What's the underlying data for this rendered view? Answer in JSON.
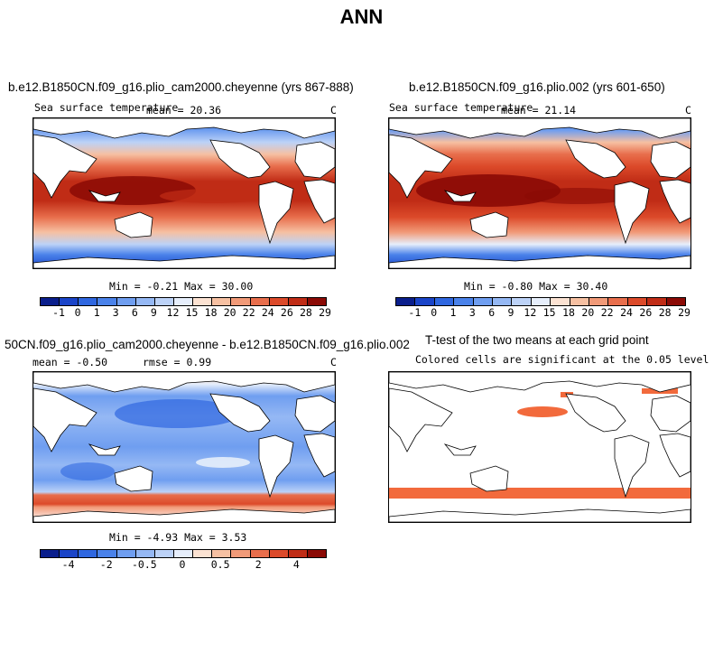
{
  "main_title": "ANN",
  "colors": {
    "palette": [
      "#0a1e8c",
      "#1a44c8",
      "#2f67e0",
      "#4a82ea",
      "#6f9ef0",
      "#95b8f4",
      "#bcd2f7",
      "#e6eefb",
      "#fbe2d2",
      "#f6c0a2",
      "#f19a78",
      "#e86e4c",
      "#dc4a2a",
      "#c02c16",
      "#8b0a05"
    ],
    "significance": "#f26a3c"
  },
  "chart_data": [
    {
      "type": "heatmap",
      "panel": "top-left",
      "title": "b.e12.B1850CN.f09_g16.plio_cam2000.cheyenne (yrs 867-888)",
      "variable": "Sea surface temperature",
      "mean_label": "mean = 20.36",
      "units": "C",
      "mean": 20.36,
      "min": -0.21,
      "max": 30.0,
      "minmax_label": "Min =  -0.21 Max =  30.00",
      "colorbar_levels": [
        "-1",
        "0",
        "1",
        "3",
        "6",
        "9",
        "12",
        "15",
        "18",
        "20",
        "22",
        "24",
        "26",
        "28",
        "29"
      ]
    },
    {
      "type": "heatmap",
      "panel": "top-right",
      "title": "b.e12.B1850CN.f09_g16.plio.002 (yrs 601-650)",
      "variable": "Sea surface temperature",
      "mean_label": "mean = 21.14",
      "units": "C",
      "mean": 21.14,
      "min": -0.8,
      "max": 30.4,
      "minmax_label": "Min =  -0.80 Max =  30.40",
      "colorbar_levels": [
        "-1",
        "0",
        "1",
        "3",
        "6",
        "9",
        "12",
        "15",
        "18",
        "20",
        "22",
        "24",
        "26",
        "28",
        "29"
      ]
    },
    {
      "type": "heatmap",
      "panel": "bottom-left",
      "title": "50CN.f09_g16.plio_cam2000.cheyenne - b.e12.B1850CN.f09_g16.plio.002",
      "mean_label": "mean =  -0.50",
      "rmse_label": "rmse =   0.99",
      "units": "C",
      "mean": -0.5,
      "rmse": 0.99,
      "min": -4.93,
      "max": 3.53,
      "minmax_label": "Min =  -4.93 Max =   3.53",
      "colorbar_levels": [
        "-4",
        "-2",
        "-0.5",
        "0",
        "0.5",
        "2",
        "4"
      ]
    },
    {
      "type": "heatmap",
      "panel": "bottom-right",
      "title": "T-test of the two means at each grid point",
      "subtitle": "Colored cells are significant at the 0.05 level",
      "significance_level": 0.05
    }
  ]
}
